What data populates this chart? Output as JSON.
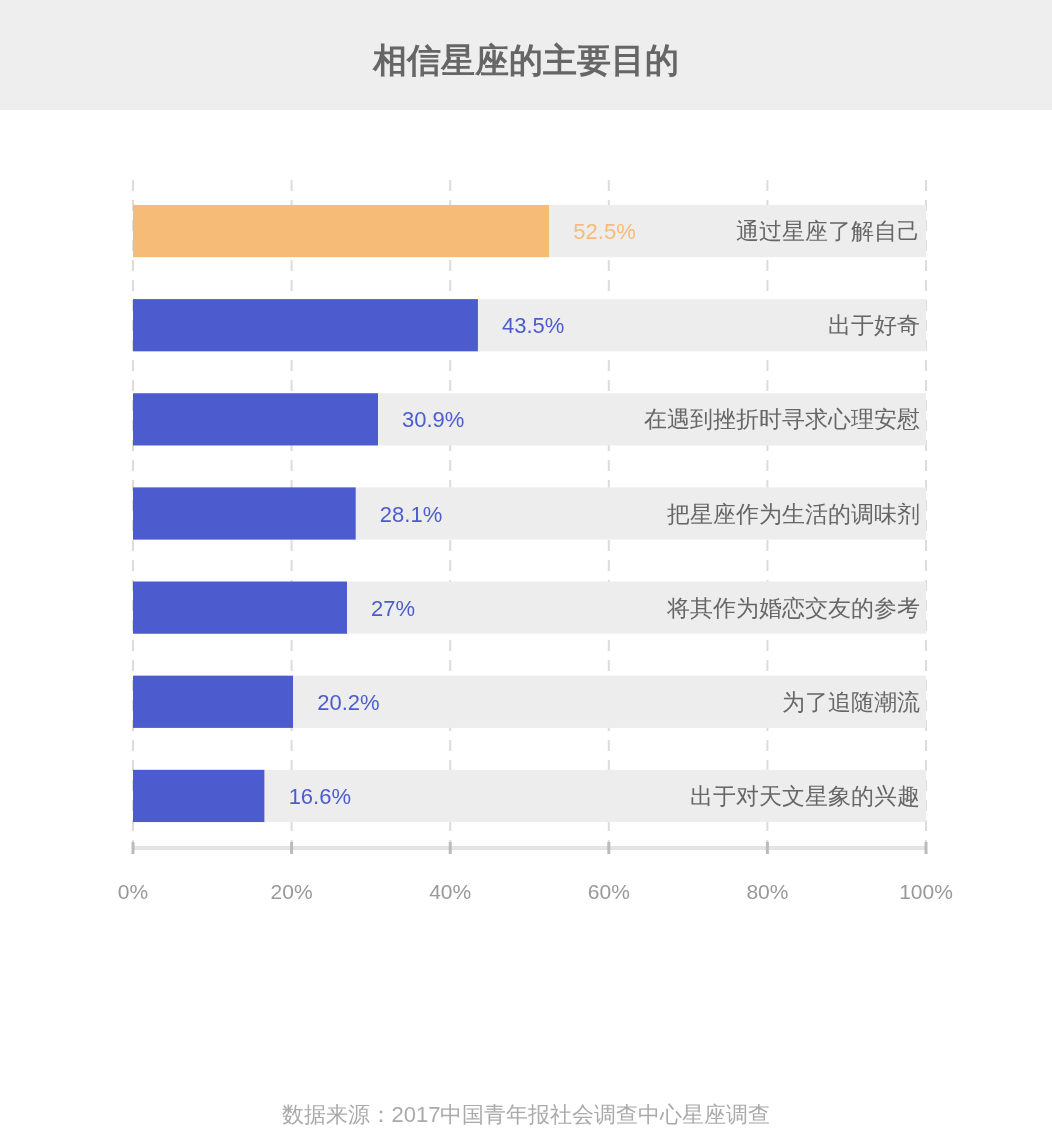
{
  "chart_data": {
    "type": "bar",
    "orientation": "horizontal",
    "stacked": true,
    "title": "相信星座的主要目的",
    "categories": [
      "通过星座了解自己",
      "出于好奇",
      "在遇到挫折时寻求心理安慰",
      "把星座作为生活的调味剂",
      "将其作为婚恋交友的参考",
      "为了追随潮流",
      "出于对天文星象的兴趣"
    ],
    "series": [
      {
        "values": [
          52.5,
          43.5,
          30.9,
          28.1,
          27,
          20.2,
          16.6
        ],
        "colors": [
          "#f6bb76",
          "#4c5ccf",
          "#4c5ccf",
          "#4c5ccf",
          "#4c5ccf",
          "#4c5ccf",
          "#4c5ccf"
        ],
        "value_labels": [
          "52.5%",
          "43.5%",
          "30.9%",
          "28.1%",
          "27%",
          "20.2%",
          "16.6%"
        ]
      },
      {
        "values": [
          47.5,
          56.5,
          69.1,
          71.9,
          73,
          79.8,
          83.4
        ],
        "color": "#ededed"
      }
    ],
    "xlim": [
      0,
      100
    ],
    "xticks": [
      {
        "value": 0,
        "label": "0%"
      },
      {
        "value": 20,
        "label": "20%"
      },
      {
        "value": 40,
        "label": "40%"
      },
      {
        "value": 60,
        "label": "60%"
      },
      {
        "value": 80,
        "label": "80%"
      },
      {
        "value": 100,
        "label": "100%"
      }
    ],
    "grid": "x",
    "annotations": [
      "数据来源：2017中国青年报社会调查中心星座调查"
    ]
  }
}
